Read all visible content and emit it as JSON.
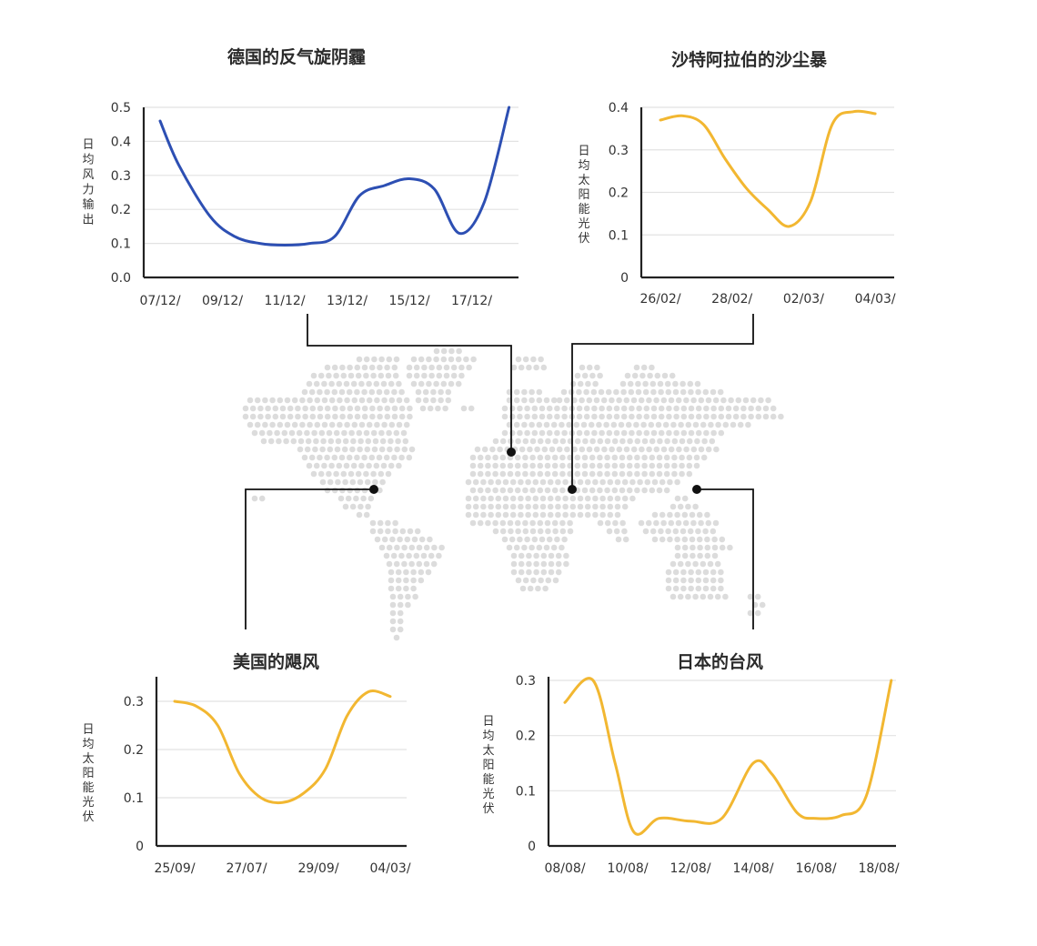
{
  "chart_data": [
    {
      "type": "line",
      "title": "德国的反气旋阴霾",
      "ylabel": "日均风力输出",
      "xlabel": "",
      "color": "#2d4fb3",
      "ylim": [
        0,
        0.5
      ],
      "yticks": [
        "0.0",
        "0.1",
        "0.2",
        "0.3",
        "0.4",
        "0.5"
      ],
      "categories": [
        "07/12/",
        "09/12/",
        "11/12/",
        "13/12/",
        "15/12/",
        "17/12/"
      ],
      "series": [
        {
          "x": [
            0.0,
            0.3,
            0.8,
            1.2,
            1.6,
            2.0,
            2.4,
            2.8,
            3.2,
            3.6,
            4.0,
            4.4,
            4.8,
            5.2,
            5.6
          ],
          "values": [
            0.46,
            0.33,
            0.18,
            0.12,
            0.1,
            0.095,
            0.1,
            0.12,
            0.24,
            0.27,
            0.29,
            0.26,
            0.13,
            0.22,
            0.5
          ]
        }
      ]
    },
    {
      "type": "line",
      "title": "沙特阿拉伯的沙尘暴",
      "ylabel": "日均太阳能光伏",
      "xlabel": "",
      "color": "#f2b731",
      "ylim": [
        0,
        0.4
      ],
      "yticks": [
        "0",
        "0.1",
        "0.2",
        "0.3",
        "0.4"
      ],
      "categories": [
        "26/02/",
        "28/02/",
        "02/03/",
        "04/03/"
      ],
      "series": [
        {
          "x": [
            0.0,
            0.3,
            0.6,
            0.9,
            1.2,
            1.5,
            1.8,
            2.1,
            2.4,
            2.7,
            3.0
          ],
          "values": [
            0.37,
            0.38,
            0.36,
            0.28,
            0.21,
            0.16,
            0.12,
            0.18,
            0.36,
            0.39,
            0.385
          ]
        }
      ]
    },
    {
      "type": "line",
      "title": "美国的飓风",
      "ylabel": "日均太阳能光伏",
      "xlabel": "",
      "color": "#f2b731",
      "ylim": [
        0,
        0.3
      ],
      "yticks": [
        "0",
        "0.1",
        "0.2",
        "0.3"
      ],
      "categories": [
        "25/09/",
        "27/07/",
        "29/09/",
        "04/03/"
      ],
      "series": [
        {
          "x": [
            0.0,
            0.3,
            0.6,
            0.9,
            1.2,
            1.5,
            1.8,
            2.1,
            2.4,
            2.7,
            3.0
          ],
          "values": [
            0.3,
            0.29,
            0.25,
            0.15,
            0.1,
            0.09,
            0.11,
            0.16,
            0.27,
            0.32,
            0.31
          ]
        }
      ]
    },
    {
      "type": "line",
      "title": "日本的台风",
      "ylabel": "日均太阳能光伏",
      "xlabel": "",
      "color": "#f2b731",
      "ylim": [
        0,
        0.3
      ],
      "yticks": [
        "0",
        "0.1",
        "0.2",
        "0.3"
      ],
      "categories": [
        "08/08/",
        "10/08/",
        "12/08/",
        "14/08/",
        "16/08/",
        "18/08/"
      ],
      "series": [
        {
          "x": [
            0.0,
            0.45,
            0.8,
            1.1,
            1.5,
            2.0,
            2.5,
            3.0,
            3.3,
            3.7,
            4.0,
            4.4,
            4.8,
            5.2
          ],
          "values": [
            0.26,
            0.3,
            0.15,
            0.025,
            0.05,
            0.045,
            0.05,
            0.15,
            0.13,
            0.06,
            0.05,
            0.055,
            0.09,
            0.3
          ]
        }
      ]
    }
  ],
  "map": {
    "dot_color": "#dcdcdc",
    "marker_color": "#111111"
  }
}
